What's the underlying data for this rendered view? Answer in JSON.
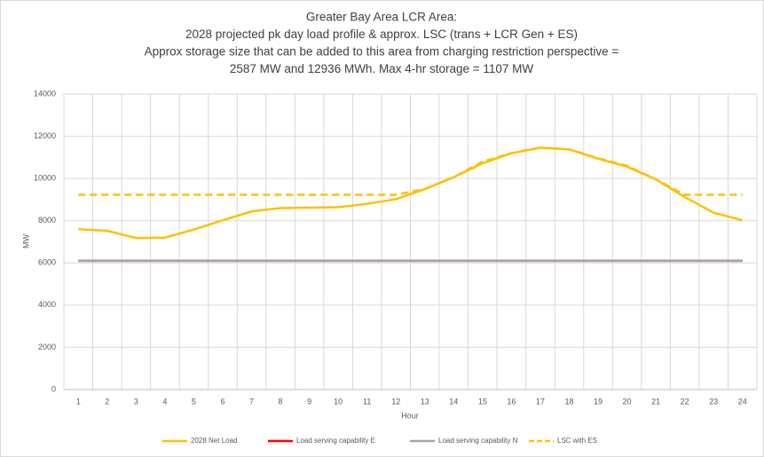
{
  "chart_data": {
    "type": "line",
    "title": [
      "Greater Bay Area LCR Area:",
      "2028 projected pk day load profile & approx. LSC (trans + LCR Gen + ES)",
      "Approx storage size that can be added to this area from charging restriction perspective =",
      "2587 MW and 12936 MWh. Max 4-hr storage = 1107 MW"
    ],
    "x_label": "Hour",
    "y_label": "MW",
    "categories": [
      "1",
      "2",
      "3",
      "4",
      "5",
      "6",
      "7",
      "8",
      "9",
      "10",
      "11",
      "12",
      "13",
      "14",
      "15",
      "16",
      "17",
      "18",
      "19",
      "20",
      "21",
      "22",
      "23",
      "24"
    ],
    "series": [
      {
        "name": "2028 Net Load",
        "color": "#ffc000",
        "dash": false,
        "values": [
          7600,
          7520,
          7180,
          7200,
          7580,
          8020,
          8440,
          8600,
          8620,
          8640,
          8800,
          9020,
          9500,
          10060,
          10720,
          11200,
          11460,
          11380,
          10940,
          10560,
          9960,
          9120,
          8380,
          8020
        ]
      },
      {
        "name": "Load serving capability E",
        "color": "#ff0000",
        "dash": false,
        "values": [
          6100,
          6100,
          6100,
          6100,
          6100,
          6100,
          6100,
          6100,
          6100,
          6100,
          6100,
          6100,
          6100,
          6100,
          6100,
          6100,
          6100,
          6100,
          6100,
          6100,
          6100,
          6100,
          6100,
          6100
        ]
      },
      {
        "name": "Load serving capability N",
        "color": "#a5a5a5",
        "dash": false,
        "values": [
          6100,
          6100,
          6100,
          6100,
          6100,
          6100,
          6100,
          6100,
          6100,
          6100,
          6100,
          6100,
          6100,
          6100,
          6100,
          6100,
          6100,
          6100,
          6100,
          6100,
          6100,
          6100,
          6100,
          6100
        ]
      },
      {
        "name": "LSC with ES",
        "color": "#ffc000",
        "dash": true,
        "values": [
          9230,
          9230,
          9230,
          9230,
          9230,
          9230,
          9230,
          9230,
          9230,
          9230,
          9230,
          9230,
          9500,
          10060,
          10800,
          11200,
          11460,
          11380,
          10960,
          10600,
          9960,
          9230,
          9230,
          9230
        ]
      }
    ],
    "ylim": [
      0,
      14000
    ],
    "yticks": [
      0,
      2000,
      4000,
      6000,
      8000,
      10000,
      12000,
      14000
    ],
    "grid": true,
    "legend": "bottom"
  }
}
